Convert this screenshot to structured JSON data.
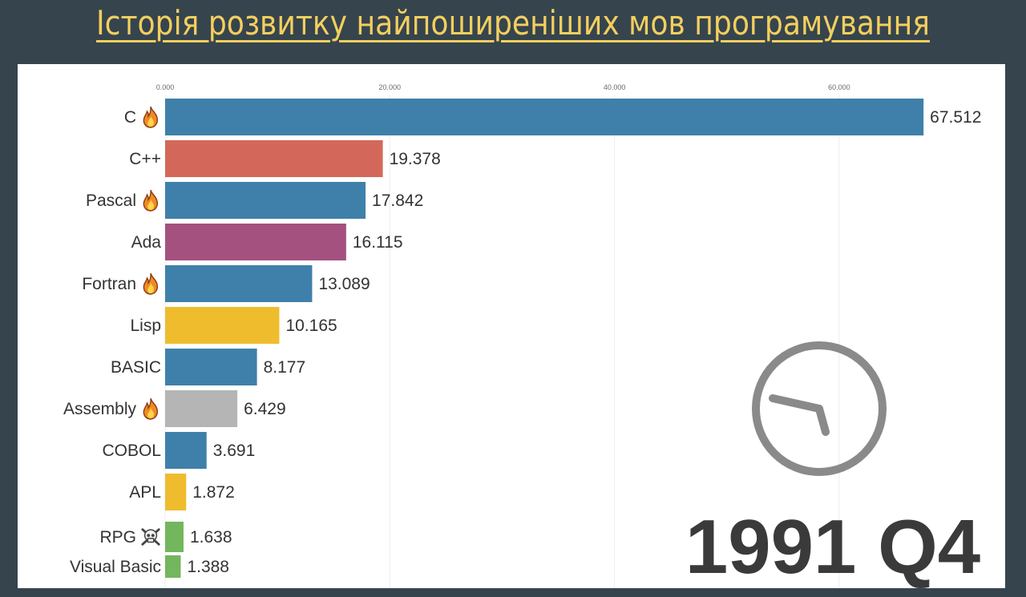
{
  "title": "Історія розвитку найпоширеніших мов програмування",
  "chart_data": {
    "type": "bar",
    "orientation": "horizontal",
    "title": "Історія розвитку найпоширеніших мов програмування",
    "period": "1991 Q4",
    "xlim": [
      0,
      68
    ],
    "ticks": [
      {
        "value": 0,
        "label": "0.000"
      },
      {
        "value": 20,
        "label": "20.000"
      },
      {
        "value": 40,
        "label": "40.000"
      },
      {
        "value": 60,
        "label": "60.000"
      }
    ],
    "grid": true,
    "bars": [
      {
        "label": "C",
        "value": 67.512,
        "value_label": "67.512",
        "color": "#3e80aa",
        "icon": "fire-icon"
      },
      {
        "label": "C++",
        "value": 19.378,
        "value_label": "19.378",
        "color": "#d3685a",
        "icon": ""
      },
      {
        "label": "Pascal",
        "value": 17.842,
        "value_label": "17.842",
        "color": "#3e80aa",
        "icon": "fire-icon"
      },
      {
        "label": "Ada",
        "value": 16.115,
        "value_label": "16.115",
        "color": "#a4517f",
        "icon": ""
      },
      {
        "label": "Fortran",
        "value": 13.089,
        "value_label": "13.089",
        "color": "#3e80aa",
        "icon": "fire-icon"
      },
      {
        "label": "Lisp",
        "value": 10.165,
        "value_label": "10.165",
        "color": "#efbc2e",
        "icon": ""
      },
      {
        "label": "BASIC",
        "value": 8.177,
        "value_label": "8.177",
        "color": "#3e80aa",
        "icon": ""
      },
      {
        "label": "Assembly",
        "value": 6.429,
        "value_label": "6.429",
        "color": "#b5b5b5",
        "icon": "fire-icon"
      },
      {
        "label": "COBOL",
        "value": 3.691,
        "value_label": "3.691",
        "color": "#3e80aa",
        "icon": ""
      },
      {
        "label": "APL",
        "value": 1.872,
        "value_label": "1.872",
        "color": "#efbc2e",
        "icon": ""
      },
      {
        "label": "RPG",
        "value": 1.638,
        "value_label": "1.638",
        "color": "#73b65d",
        "icon": "skull-icon"
      },
      {
        "label": "Visual Basic",
        "value": 1.388,
        "value_label": "1.388",
        "color": "#73b65d",
        "icon": ""
      }
    ],
    "clock": {
      "icon": "clock-icon",
      "color": "#8a8a8a"
    }
  }
}
